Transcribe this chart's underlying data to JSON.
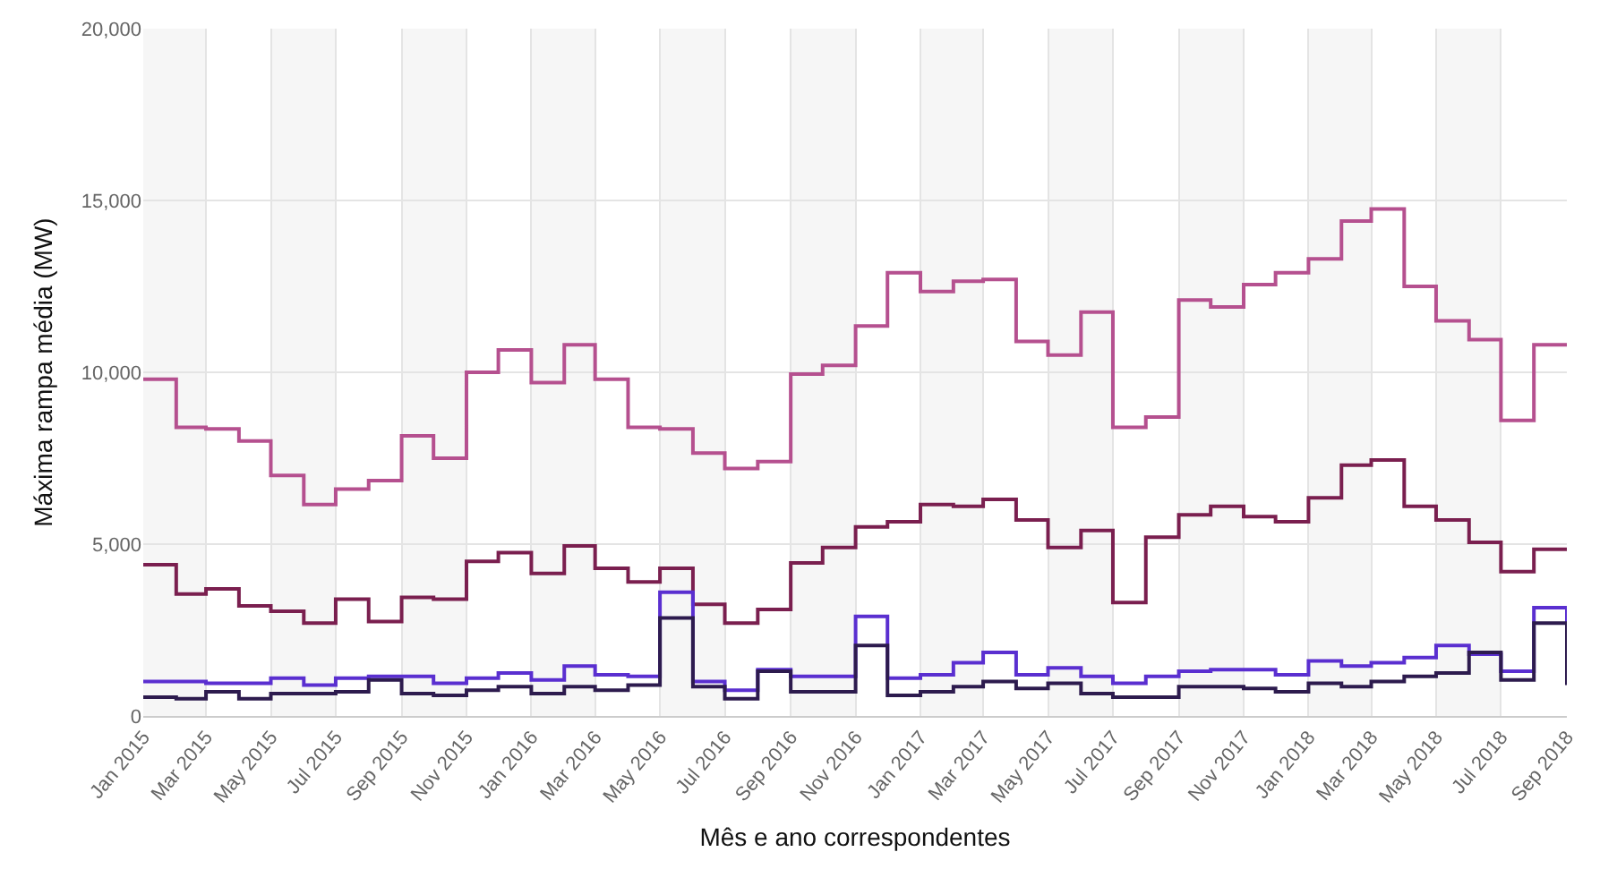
{
  "chart_data": {
    "type": "step",
    "xlabel": "Mês e ano correspondentes",
    "ylabel": "Máxima rampa média (MW)",
    "x": [
      "2015-01",
      "2015-02",
      "2015-03",
      "2015-04",
      "2015-05",
      "2015-06",
      "2015-07",
      "2015-08",
      "2015-09",
      "2015-10",
      "2015-11",
      "2015-12",
      "2016-01",
      "2016-02",
      "2016-03",
      "2016-04",
      "2016-05",
      "2016-06",
      "2016-07",
      "2016-08",
      "2016-09",
      "2016-10",
      "2016-11",
      "2016-12",
      "2017-01",
      "2017-02",
      "2017-03",
      "2017-04",
      "2017-05",
      "2017-06",
      "2017-07",
      "2017-08",
      "2017-09",
      "2017-10",
      "2017-11",
      "2017-12",
      "2018-01",
      "2018-02",
      "2018-03",
      "2018-04",
      "2018-05",
      "2018-06",
      "2018-07",
      "2018-08",
      "2018-09"
    ],
    "series": [
      {
        "color": "#b5508f",
        "values": [
          9800,
          8400,
          8350,
          8000,
          7000,
          6150,
          6600,
          6850,
          8150,
          7500,
          10000,
          10650,
          9700,
          10800,
          9800,
          8400,
          8350,
          7650,
          7200,
          7400,
          9950,
          10200,
          11350,
          12900,
          12350,
          12650,
          12700,
          10900,
          10500,
          11750,
          8400,
          8700,
          12100,
          11900,
          12550,
          12900,
          13300,
          14400,
          14750,
          12500,
          11500,
          10950,
          8600,
          10800,
          10800
        ]
      },
      {
        "color": "#7a1f4f",
        "values": [
          4400,
          3550,
          3700,
          3200,
          3050,
          2700,
          3400,
          2750,
          3450,
          3400,
          4500,
          4750,
          4150,
          4950,
          4300,
          3900,
          4300,
          3250,
          2700,
          3100,
          4450,
          4900,
          5500,
          5650,
          6150,
          6100,
          6300,
          5700,
          4900,
          5400,
          3300,
          5200,
          5850,
          6100,
          5800,
          5650,
          6350,
          7300,
          7450,
          6100,
          5700,
          5050,
          4200,
          4850,
          4850
        ]
      },
      {
        "color": "#5a2fd0",
        "values": [
          1000,
          1000,
          950,
          950,
          1100,
          900,
          1100,
          1150,
          1150,
          950,
          1100,
          1250,
          1050,
          1450,
          1200,
          1150,
          3600,
          1000,
          750,
          1350,
          1150,
          1150,
          2900,
          1100,
          1200,
          1550,
          1850,
          1200,
          1400,
          1150,
          950,
          1150,
          1300,
          1350,
          1350,
          1200,
          1600,
          1450,
          1550,
          1700,
          2050,
          1800,
          1300,
          3150,
          1000
        ]
      },
      {
        "color": "#2d1b4e",
        "values": [
          550,
          500,
          700,
          500,
          650,
          650,
          700,
          1050,
          650,
          600,
          750,
          850,
          650,
          850,
          750,
          900,
          2850,
          850,
          500,
          1300,
          700,
          700,
          2050,
          600,
          700,
          850,
          1000,
          800,
          950,
          650,
          550,
          550,
          850,
          850,
          800,
          700,
          950,
          850,
          1000,
          1150,
          1250,
          1850,
          1050,
          2700,
          900
        ]
      }
    ],
    "xlim": [
      "2015-01",
      "2018-09"
    ],
    "xticks": [
      {
        "value": "2015-01",
        "label": "Jan 2015"
      },
      {
        "value": "2015-03",
        "label": "Mar 2015"
      },
      {
        "value": "2015-05",
        "label": "May 2015"
      },
      {
        "value": "2015-07",
        "label": "Jul 2015"
      },
      {
        "value": "2015-09",
        "label": "Sep 2015"
      },
      {
        "value": "2015-11",
        "label": "Nov 2015"
      },
      {
        "value": "2016-01",
        "label": "Jan 2016"
      },
      {
        "value": "2016-03",
        "label": "Mar 2016"
      },
      {
        "value": "2016-05",
        "label": "May 2016"
      },
      {
        "value": "2016-07",
        "label": "Jul 2016"
      },
      {
        "value": "2016-09",
        "label": "Sep 2016"
      },
      {
        "value": "2016-11",
        "label": "Nov 2016"
      },
      {
        "value": "2017-01",
        "label": "Jan 2017"
      },
      {
        "value": "2017-03",
        "label": "Mar 2017"
      },
      {
        "value": "2017-05",
        "label": "May 2017"
      },
      {
        "value": "2017-07",
        "label": "Jul 2017"
      },
      {
        "value": "2017-09",
        "label": "Sep 2017"
      },
      {
        "value": "2017-11",
        "label": "Nov 2017"
      },
      {
        "value": "2018-01",
        "label": "Jan 2018"
      },
      {
        "value": "2018-03",
        "label": "Mar 2018"
      },
      {
        "value": "2018-05",
        "label": "May 2018"
      },
      {
        "value": "2018-07",
        "label": "Jul 2018"
      },
      {
        "value": "2018-09",
        "label": "Sep 2018"
      }
    ],
    "ylim": [
      0,
      20000
    ],
    "yticks": [
      {
        "value": 0,
        "label": "0"
      },
      {
        "value": 5000,
        "label": "5,000"
      },
      {
        "value": 10000,
        "label": "10,000"
      },
      {
        "value": 15000,
        "label": "15,000"
      },
      {
        "value": 20000,
        "label": "20,000"
      }
    ],
    "bands": [
      {
        "axis": "x",
        "from": "2015-01",
        "to": "2015-03",
        "color": "#f6f6f6"
      },
      {
        "axis": "x",
        "from": "2015-05",
        "to": "2015-07",
        "color": "#f6f6f6"
      },
      {
        "axis": "x",
        "from": "2015-09",
        "to": "2015-11",
        "color": "#f6f6f6"
      },
      {
        "axis": "x",
        "from": "2016-01",
        "to": "2016-03",
        "color": "#f6f6f6"
      },
      {
        "axis": "x",
        "from": "2016-05",
        "to": "2016-07",
        "color": "#f6f6f6"
      },
      {
        "axis": "x",
        "from": "2016-09",
        "to": "2016-11",
        "color": "#f6f6f6"
      },
      {
        "axis": "x",
        "from": "2017-01",
        "to": "2017-03",
        "color": "#f6f6f6"
      },
      {
        "axis": "x",
        "from": "2017-05",
        "to": "2017-07",
        "color": "#f6f6f6"
      },
      {
        "axis": "x",
        "from": "2017-09",
        "to": "2017-11",
        "color": "#f6f6f6"
      },
      {
        "axis": "x",
        "from": "2018-01",
        "to": "2018-03",
        "color": "#f6f6f6"
      },
      {
        "axis": "x",
        "from": "2018-05",
        "to": "2018-07",
        "color": "#f6f6f6"
      }
    ],
    "grid": true,
    "marker": "none",
    "line_style": "solid"
  }
}
